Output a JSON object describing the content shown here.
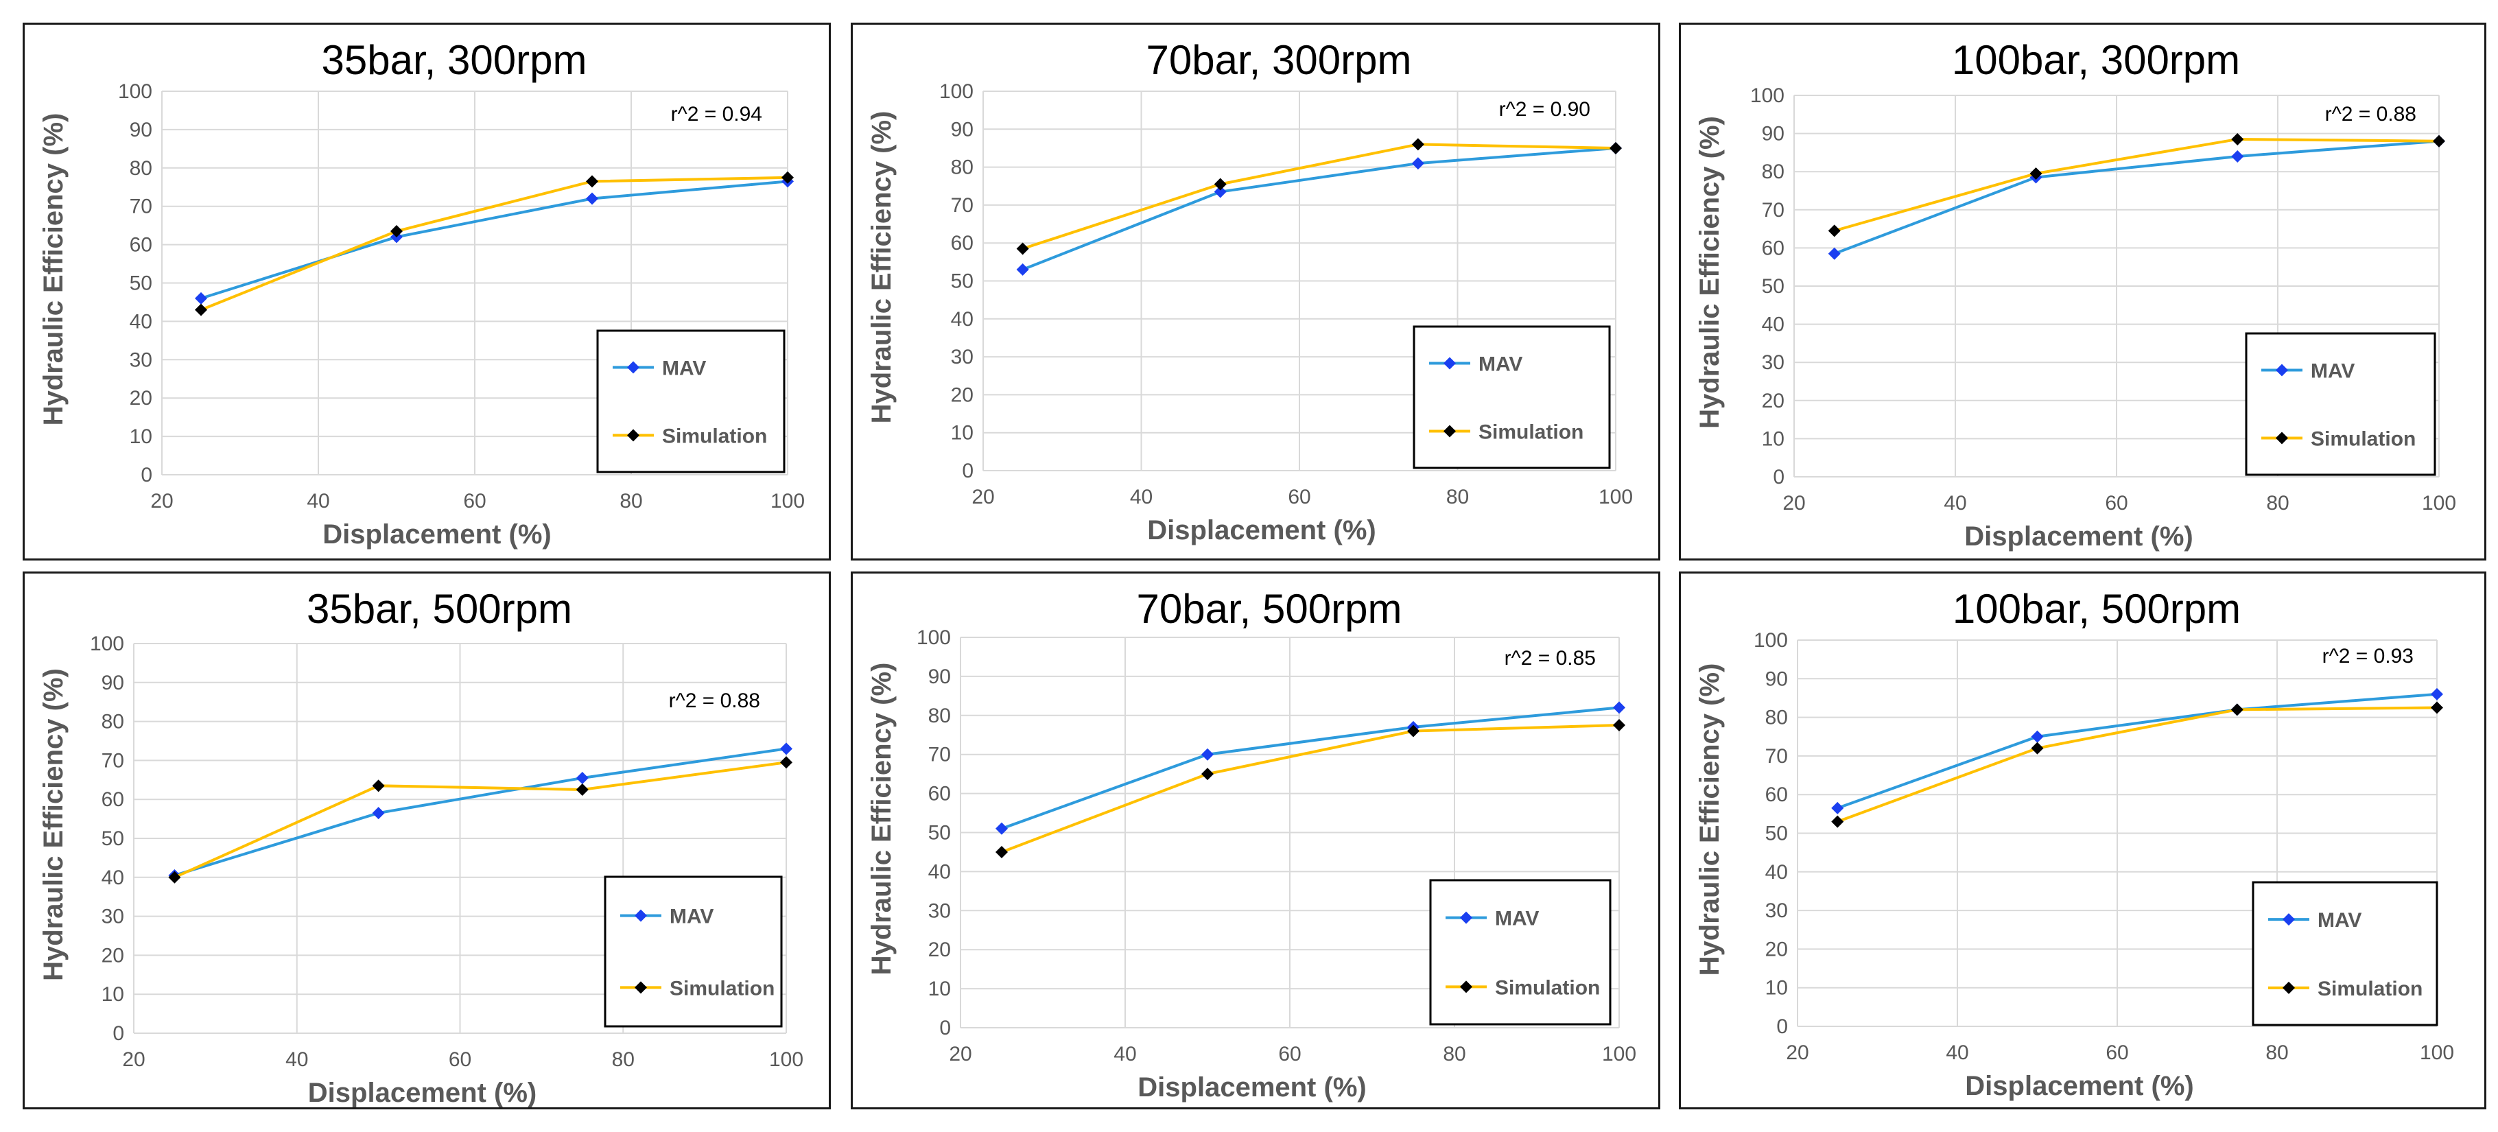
{
  "chart_data": [
    {
      "type": "line",
      "title": "35bar, 300rpm",
      "xlabel": "Displacement (%)",
      "ylabel": "Hydraulic Efficiency (%)",
      "xlim": [
        20,
        100
      ],
      "ylim": [
        0,
        100
      ],
      "xticks": [
        20,
        40,
        60,
        80,
        100
      ],
      "yticks": [
        0,
        10,
        20,
        30,
        40,
        50,
        60,
        70,
        80,
        90,
        100
      ],
      "grid": true,
      "legend_position": "bottom-right",
      "annotation": "r^2 = 0.94",
      "x": [
        25,
        50,
        75,
        100
      ],
      "series": [
        {
          "name": "MAV",
          "values": [
            46,
            62,
            72,
            76.5
          ]
        },
        {
          "name": "Simulation",
          "values": [
            43,
            63.5,
            76.5,
            77.5
          ]
        }
      ]
    },
    {
      "type": "line",
      "title": "70bar, 300rpm",
      "xlabel": "Displacement (%)",
      "ylabel": "Hydraulic Efficiency (%)",
      "xlim": [
        20,
        100
      ],
      "ylim": [
        0,
        100
      ],
      "xticks": [
        20,
        40,
        60,
        80,
        100
      ],
      "yticks": [
        0,
        10,
        20,
        30,
        40,
        50,
        60,
        70,
        80,
        90,
        100
      ],
      "grid": true,
      "legend_position": "bottom-right",
      "annotation": "r^2 = 0.90",
      "x": [
        25,
        50,
        75,
        100
      ],
      "series": [
        {
          "name": "MAV",
          "values": [
            53,
            73.5,
            81,
            85
          ]
        },
        {
          "name": "Simulation",
          "values": [
            58.5,
            75.5,
            86,
            85
          ]
        }
      ]
    },
    {
      "type": "line",
      "title": "100bar, 300rpm",
      "xlabel": "Displacement (%)",
      "ylabel": "Hydraulic Efficiency (%)",
      "xlim": [
        20,
        100
      ],
      "ylim": [
        0,
        100
      ],
      "xticks": [
        20,
        40,
        60,
        80,
        100
      ],
      "yticks": [
        0,
        10,
        20,
        30,
        40,
        50,
        60,
        70,
        80,
        90,
        100
      ],
      "grid": true,
      "legend_position": "bottom-right",
      "annotation": "r^2 = 0.88",
      "x": [
        25,
        50,
        75,
        100
      ],
      "series": [
        {
          "name": "MAV",
          "values": [
            58.5,
            78.5,
            84,
            88
          ]
        },
        {
          "name": "Simulation",
          "values": [
            64.5,
            79.5,
            88.5,
            88
          ]
        }
      ]
    },
    {
      "type": "line",
      "title": "35bar, 500rpm",
      "xlabel": "Displacement (%)",
      "ylabel": "Hydraulic Efficiency (%)",
      "xlim": [
        20,
        100
      ],
      "ylim": [
        0,
        100
      ],
      "xticks": [
        20,
        40,
        60,
        80,
        100
      ],
      "yticks": [
        0,
        10,
        20,
        30,
        40,
        50,
        60,
        70,
        80,
        90,
        100
      ],
      "grid": true,
      "legend_position": "bottom-right",
      "annotation": "r^2 = 0.88",
      "x": [
        25,
        50,
        75,
        100
      ],
      "series": [
        {
          "name": "MAV",
          "values": [
            40.5,
            56.5,
            65.5,
            73
          ]
        },
        {
          "name": "Simulation",
          "values": [
            40,
            63.5,
            62.5,
            69.5
          ]
        }
      ]
    },
    {
      "type": "line",
      "title": "70bar, 500rpm",
      "xlabel": "Displacement (%)",
      "ylabel": "Hydraulic Efficiency (%)",
      "xlim": [
        20,
        100
      ],
      "ylim": [
        0,
        100
      ],
      "xticks": [
        20,
        40,
        60,
        80,
        100
      ],
      "yticks": [
        0,
        10,
        20,
        30,
        40,
        50,
        60,
        70,
        80,
        90,
        100
      ],
      "grid": true,
      "legend_position": "bottom-right",
      "annotation": "r^2 = 0.85",
      "x": [
        25,
        50,
        75,
        100
      ],
      "series": [
        {
          "name": "MAV",
          "values": [
            51,
            70,
            77,
            82
          ]
        },
        {
          "name": "Simulation",
          "values": [
            45,
            65,
            76,
            77.5
          ]
        }
      ]
    },
    {
      "type": "line",
      "title": "100bar, 500rpm",
      "xlabel": "Displacement (%)",
      "ylabel": "Hydraulic Efficiency (%)",
      "xlim": [
        20,
        100
      ],
      "ylim": [
        0,
        100
      ],
      "xticks": [
        20,
        40,
        60,
        80,
        100
      ],
      "yticks": [
        0,
        10,
        20,
        30,
        40,
        50,
        60,
        70,
        80,
        90,
        100
      ],
      "grid": true,
      "legend_position": "bottom-right",
      "annotation": "r^2 = 0.93",
      "x": [
        25,
        50,
        75,
        100
      ],
      "series": [
        {
          "name": "MAV",
          "values": [
            56.5,
            75,
            82,
            86
          ]
        },
        {
          "name": "Simulation",
          "values": [
            53,
            72,
            82,
            82.5
          ]
        }
      ]
    }
  ],
  "colors": {
    "mav_line": "#2e9bdc",
    "mav_marker": "#1a3ff0",
    "simulation_line": "#ffc000",
    "simulation_marker": "#000000",
    "grid": "#d9d9d9",
    "axis_text": "#595959"
  }
}
